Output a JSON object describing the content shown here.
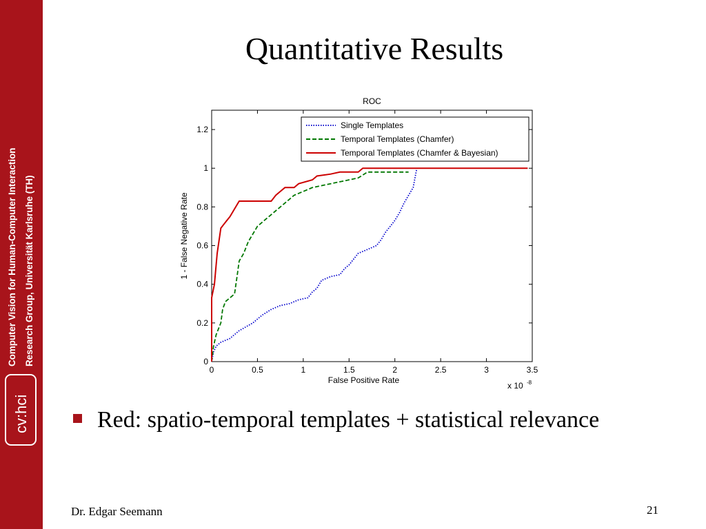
{
  "sidebar": {
    "line1": "Computer Vision for Human-Computer Interaction",
    "line2": "Research Group, Universität Karlsruhe (TH)",
    "logo": "cv:hci",
    "color": "#a8141b"
  },
  "slide": {
    "title": "Quantitative Results",
    "bullet": "Red: spatio-temporal templates + statistical relevance",
    "author": "Dr. Edgar Seemann",
    "page_number": "21"
  },
  "chart_data": {
    "type": "line",
    "title": "ROC",
    "xlabel": "False Positive Rate",
    "ylabel": "1 - False Negative Rate",
    "x_multiplier": "x 10",
    "x_multiplier_exponent": "-8",
    "xlim": [
      0,
      3.5
    ],
    "ylim": [
      0,
      1.3
    ],
    "xticks": [
      "0",
      "0.5",
      "1",
      "1.5",
      "2",
      "2.5",
      "3",
      "3.5"
    ],
    "yticks": [
      "0",
      "0.2",
      "0.4",
      "0.6",
      "0.8",
      "1",
      "1.2"
    ],
    "legend_position": "top-right",
    "series": [
      {
        "name": "Single Templates",
        "color": "#0000cc",
        "style": "dotted",
        "points": [
          [
            0,
            0
          ],
          [
            0.02,
            0.05
          ],
          [
            0.05,
            0.08
          ],
          [
            0.1,
            0.1
          ],
          [
            0.2,
            0.12
          ],
          [
            0.3,
            0.16
          ],
          [
            0.45,
            0.2
          ],
          [
            0.55,
            0.24
          ],
          [
            0.65,
            0.27
          ],
          [
            0.75,
            0.29
          ],
          [
            0.85,
            0.3
          ],
          [
            0.95,
            0.32
          ],
          [
            1.05,
            0.33
          ],
          [
            1.1,
            0.36
          ],
          [
            1.15,
            0.38
          ],
          [
            1.2,
            0.42
          ],
          [
            1.3,
            0.44
          ],
          [
            1.4,
            0.45
          ],
          [
            1.45,
            0.48
          ],
          [
            1.5,
            0.5
          ],
          [
            1.55,
            0.53
          ],
          [
            1.6,
            0.56
          ],
          [
            1.7,
            0.58
          ],
          [
            1.8,
            0.6
          ],
          [
            1.85,
            0.63
          ],
          [
            1.9,
            0.67
          ],
          [
            1.95,
            0.7
          ],
          [
            2.0,
            0.73
          ],
          [
            2.05,
            0.77
          ],
          [
            2.1,
            0.82
          ],
          [
            2.15,
            0.86
          ],
          [
            2.2,
            0.9
          ],
          [
            2.22,
            0.95
          ],
          [
            2.24,
            1.0
          ]
        ]
      },
      {
        "name": "Temporal Templates (Chamfer)",
        "color": "#007700",
        "style": "dashed",
        "points": [
          [
            0,
            0
          ],
          [
            0.02,
            0.08
          ],
          [
            0.05,
            0.14
          ],
          [
            0.1,
            0.2
          ],
          [
            0.12,
            0.27
          ],
          [
            0.15,
            0.31
          ],
          [
            0.2,
            0.33
          ],
          [
            0.25,
            0.35
          ],
          [
            0.28,
            0.45
          ],
          [
            0.3,
            0.52
          ],
          [
            0.35,
            0.56
          ],
          [
            0.4,
            0.62
          ],
          [
            0.45,
            0.66
          ],
          [
            0.5,
            0.7
          ],
          [
            0.6,
            0.74
          ],
          [
            0.7,
            0.78
          ],
          [
            0.8,
            0.82
          ],
          [
            0.9,
            0.86
          ],
          [
            1.0,
            0.88
          ],
          [
            1.1,
            0.9
          ],
          [
            1.2,
            0.91
          ],
          [
            1.3,
            0.92
          ],
          [
            1.4,
            0.93
          ],
          [
            1.5,
            0.94
          ],
          [
            1.6,
            0.95
          ],
          [
            1.7,
            0.98
          ],
          [
            2.15,
            0.98
          ]
        ]
      },
      {
        "name": "Temporal Templates (Chamfer & Bayesian)",
        "color": "#cc0000",
        "style": "solid",
        "points": [
          [
            0,
            0
          ],
          [
            0.0,
            0.33
          ],
          [
            0.03,
            0.4
          ],
          [
            0.06,
            0.56
          ],
          [
            0.1,
            0.69
          ],
          [
            0.15,
            0.72
          ],
          [
            0.2,
            0.75
          ],
          [
            0.25,
            0.79
          ],
          [
            0.3,
            0.83
          ],
          [
            0.4,
            0.83
          ],
          [
            0.65,
            0.83
          ],
          [
            0.7,
            0.86
          ],
          [
            0.75,
            0.88
          ],
          [
            0.8,
            0.9
          ],
          [
            0.9,
            0.9
          ],
          [
            0.95,
            0.92
          ],
          [
            1.1,
            0.94
          ],
          [
            1.15,
            0.96
          ],
          [
            1.3,
            0.97
          ],
          [
            1.4,
            0.98
          ],
          [
            1.6,
            0.98
          ],
          [
            1.65,
            1.0
          ],
          [
            3.45,
            1.0
          ]
        ]
      }
    ]
  }
}
